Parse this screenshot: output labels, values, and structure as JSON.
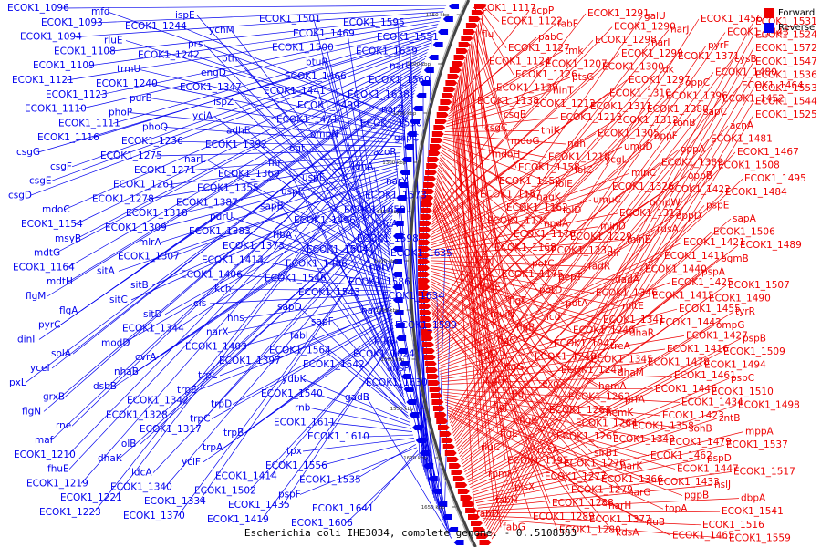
{
  "caption": "Escherichia coli IHE3034, complete genome. - 0..5108383",
  "legend": [
    {
      "label": "Forward",
      "color": "#ee0000"
    },
    {
      "label": "Reverse",
      "color": "#0000ee"
    }
  ],
  "colors": {
    "forward": "#ee0000",
    "reverse": "#0000ee"
  },
  "ticks": [
    "1150 kbp",
    "1200 kbp",
    "1250 kbp",
    "1300 kbp",
    "1350 kbp",
    "1400 kbp",
    "1450 kbp",
    "1500 kbp",
    "1550 kbp",
    "1600 kbp",
    "1650 kbp"
  ],
  "reverse_labels": [
    "ECOK1_1096",
    "ECOK1_1093",
    "ECOK1_1094",
    "ECOK1_1108",
    "ECOK1_1109",
    "ECOK1_1121",
    "ECOK1_1123",
    "ECOK1_1110",
    "ECOK1_1111",
    "ECOK1_1116",
    "csgG",
    "csgF",
    "csgE",
    "csgD",
    "mdoC",
    "ECOK1_1154",
    "msyB",
    "mdtG",
    "ECOK1_1164",
    "mdtH",
    "flgM",
    "flgA",
    "pyrC",
    "dinI",
    "solA",
    "yceI",
    "pxL",
    "grxB",
    "flgN",
    "rne",
    "maf",
    "ECOK1_1210",
    "fhuE",
    "ECOK1_1219",
    "ECOK1_1221",
    "ECOK1_1223",
    "mfd",
    "ECOK1_1244",
    "rluE",
    "ECOK1_1242",
    "trmU",
    "ECOK1_1240",
    "purB",
    "phoP",
    "phoQ",
    "ECOK1_1236",
    "ECOK1_1275",
    "ECOK1_1271",
    "ECOK1_1261",
    "ECOK1_1278",
    "ECOK1_1318",
    "ECOK1_1309",
    "mlrA",
    "ECOK1_1307",
    "sitA",
    "sitB",
    "sitC",
    "sitD",
    "ECOK1_1344",
    "modD",
    "cvrA",
    "nhaB",
    "dsbB",
    "ECOK1_1342",
    "ECOK1_1328",
    "ECOK1_1317",
    "lolB",
    "dhaK",
    "ldcA",
    "ECOK1_1340",
    "ECOK1_1334",
    "ECOK1_1370",
    "ispE",
    "ychM",
    "prs",
    "pth",
    "engD",
    "ECOK1_1347",
    "ispZ",
    "yciA",
    "adhE",
    "ECOK1_1392",
    "narL",
    "ECOK1_1369",
    "ECOK1_1355",
    "ECOK1_1387",
    "purU",
    "ECOK1_1383",
    "ECOK1_1373",
    "ECOK1_1413",
    "ECOK1_1406",
    "kch",
    "cls",
    "hns",
    "narX",
    "ECOK1_1403",
    "ECOK1_1397",
    "trpL",
    "trpE",
    "trpD",
    "trpC",
    "trpB",
    "trpA",
    "yciF",
    "ECOK1_1414",
    "ECOK1_1502",
    "ECOK1_1435",
    "ECOK1_1419",
    "ECOK1_1501",
    "ECOK1_1469",
    "ECOK1_1500",
    "btuR",
    "ECOK1_1466",
    "ECOK1_1441",
    "ECOK1_1499",
    "ECOK1_1471",
    "ompN",
    "ogt",
    "fnr",
    "uspF",
    "uspE",
    "sapB",
    "ECOK1_1496",
    "ribA",
    "ECOK1_1504",
    "ECOK1_1486",
    "ECOK1_1546",
    "ECOK1_1543",
    "sapD",
    "sapF",
    "fabI",
    "ECOK1_1564",
    "ECOK1_1542",
    "ydbK",
    "ECOK1_1540",
    "rnb",
    "ECOK1_1611",
    "ECOK1_1610",
    "tpx",
    "ECOK1_1556",
    "ECOK1_1535",
    "pspF",
    "ECOK1_1641",
    "ECOK1_1606",
    "ECOK1_1595",
    "ECOK1_1551",
    "ECOK1_1639",
    "narU",
    "ECOK1_1560",
    "ECOK1_1638",
    "narZ",
    "ECOK1_1590",
    "gapC",
    "azoR",
    "ldhA",
    "narY",
    "ECOK1_1573",
    "ECOK1_1650",
    "sfcA",
    "ECOK1_1598",
    "ECOK1_1635",
    "narW",
    "ECOK1_1586",
    "ECOK1_1634",
    "narV",
    "ECOK1_1599",
    "pqqL",
    "ECOK1_1624",
    "ansP",
    "ECOK1_1630",
    "gadB"
  ],
  "forward_labels": [
    "ECOK1_1117",
    "ECOK1_1122",
    "flu",
    "ECOK1_1127",
    "ECOK1_1124",
    "ECOK1_1126",
    "ECOK1_1139",
    "ECOK1_1138",
    "csgB",
    "csgC",
    "mdoG",
    "mdoH",
    "ECOK1_1158",
    "ECOK1_1152",
    "ECOK1_1157",
    "ECOK1_1162",
    "ECOK1_1171",
    "ECOK1_1176",
    "ECOK1_1168",
    "rimJ",
    "ECOK1_1175",
    "flgE",
    "flgF",
    "mviN",
    "flgB",
    "flgC",
    "flgD",
    "flgG",
    "flgH",
    "flgI",
    "flgJ",
    "flgK",
    "flgL",
    "rluC",
    "ECOK1_1195",
    "rpmF",
    "plsX",
    "fabH",
    "fabD",
    "fabG",
    "acpP",
    "fabF",
    "pabC",
    "tmk",
    "ECOK1_1207",
    "ptsG",
    "hinT",
    "ECOK1_1212",
    "ECOK1_1213",
    "thiK",
    "ndh",
    "ECOK1_1218",
    "lolC",
    "lolE",
    "nagK",
    "lolD",
    "npdA",
    "ECOK1_1229",
    "ECOK1_1230",
    "potC",
    "pepT",
    "potD",
    "potA",
    "icd",
    "ECOK1_1246",
    "ECOK1_1247",
    "ECOK1_1248",
    "ECOK1_1249",
    "exo",
    "ECOK1_1262",
    "ECOK1_1263",
    "ECOK1_1264",
    "ECOK1_1265",
    "rusA",
    "ECOK1_1276",
    "ECOK1_1277",
    "ECOK1_1279",
    "ECOK1_1288",
    "ECOK1_1289",
    "ECOK1_1280",
    "ECOK1_1291",
    "ECOK1_1290",
    "ECOK1_1298",
    "ECOK1_1299",
    "ECOK1_1300",
    "ECOK1_1297",
    "ECOK1_1310",
    "ECOK1_1311",
    "ECOK1_1312",
    "ECOK1_1305",
    "umuD",
    "ycgL",
    "minC",
    "ECOK1_1326",
    "umuC",
    "ECOK1_1313",
    "minD",
    "minE",
    "air",
    "fadR",
    "dadA",
    "ECOK1_1346",
    "mltE",
    "ECOK1_1341",
    "dhaR",
    "treA",
    "ECOK1_1345",
    "dhaM",
    "hemA",
    "prfA",
    "hemK",
    "ECOK1_1358",
    "ECOK1_1349",
    "sirB1",
    "narK",
    "ECOK1_1366",
    "narG",
    "narH",
    "ECOK1_1377",
    "kdsA",
    "galU",
    "narJ",
    "narI",
    "ECOK1_1371",
    "tdk",
    "oppC",
    "ECOK1_1396",
    "ECOK1_1388",
    "tonB",
    "oppF",
    "oppA",
    "ECOK1_1389",
    "oppB",
    "ECOK1_1422",
    "ompW",
    "oppD",
    "rusA",
    "ECOK1_1421",
    "ECOK1_1411",
    "ECOK1_1440",
    "ECOK1_1425",
    "ECOK1_1415",
    "ECOK1_1455",
    "ECOK1_1442",
    "ECOK1_1427",
    "ECOK1_1416",
    "ECOK1_1478",
    "ECOK1_1461",
    "ECOK1_1446",
    "ECOK1_1434",
    "ECOK1_1423",
    "sohB",
    "ECOK1_1479",
    "ECOK1_1462",
    "ECOK1_1447",
    "ECOK1_1433",
    "pgpB",
    "topA",
    "rluB",
    "ECOK1_1465",
    "ECOK1_1456",
    "ECOK1_1443",
    "pyrF",
    "cysB",
    "ECOK1_1480",
    "ECOK1_1464",
    "ECOK1_1452",
    "sapC",
    "acnA",
    "ECOK1_1481",
    "ECOK1_1467",
    "ECOK1_1508",
    "ECOK1_1495",
    "ECOK1_1484",
    "pspE",
    "sapA",
    "ECOK1_1506",
    "ECOK1_1489",
    "pgmB",
    "pspA",
    "ECOK1_1507",
    "ECOK1_1490",
    "tyrR",
    "ompG",
    "pspB",
    "ECOK1_1509",
    "ECOK1_1494",
    "pspC",
    "ECOK1_1510",
    "ECOK1_1498",
    "zntB",
    "mppA",
    "ECOK1_1537",
    "pspD",
    "ECOK1_1517",
    "hslJ",
    "dbpA",
    "ECOK1_1541",
    "ECOK1_1516",
    "ECOK1_1559",
    "ECOK1_1531",
    "ECOK1_1524",
    "ECOK1_1572",
    "ECOK1_1547",
    "ECOK1_1536",
    "ECOK1_1553",
    "ECOK1_1544",
    "ECOK1_1525"
  ]
}
